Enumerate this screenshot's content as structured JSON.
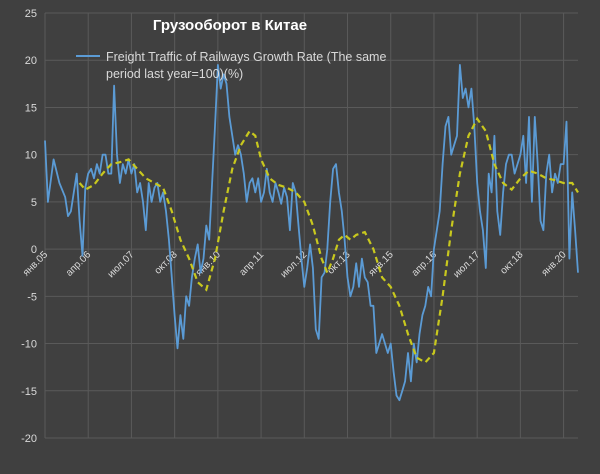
{
  "chart_data": {
    "type": "line",
    "title": "Грузооборот в Китае",
    "xlabel": "",
    "ylabel": "",
    "ylim": [
      -20,
      25
    ],
    "y_ticks": [
      -20,
      -15,
      -10,
      -5,
      0,
      5,
      10,
      15,
      20,
      25
    ],
    "x_ticks": [
      {
        "label": "янв.05",
        "x": "2005-01"
      },
      {
        "label": "апр.06",
        "x": "2006-04"
      },
      {
        "label": "июл.07",
        "x": "2007-07"
      },
      {
        "label": "окт.08",
        "x": "2008-10"
      },
      {
        "label": "янв.10",
        "x": "2010-01"
      },
      {
        "label": "апр.11",
        "x": "2011-04"
      },
      {
        "label": "июл.12",
        "x": "2012-07"
      },
      {
        "label": "окт.13",
        "x": "2013-10"
      },
      {
        "label": "янв.15",
        "x": "2015-01"
      },
      {
        "label": "апр.16",
        "x": "2016-04"
      },
      {
        "label": "июл.17",
        "x": "2017-07"
      },
      {
        "label": "окт.18",
        "x": "2018-10"
      },
      {
        "label": "янв.20",
        "x": "2020-01"
      }
    ],
    "x_range": [
      "2005-01",
      "2020-06"
    ],
    "grid": true,
    "legend": "top-center",
    "colors": {
      "background": "#404040",
      "grid": "#5a5a5a",
      "axis_text": "#d9d9d9",
      "series": "#5b9bd5",
      "trend": "#c8c81e",
      "title": "#ffffff"
    },
    "series": [
      {
        "name": "Freight Traffic of Railways Growth Rate (The same period last year=100)(%)",
        "style": "solid",
        "points": [
          [
            "2005-01",
            11.5
          ],
          [
            "2005-02",
            5
          ],
          [
            "2005-04",
            9.5
          ],
          [
            "2005-06",
            7
          ],
          [
            "2005-08",
            5.5
          ],
          [
            "2005-09",
            3.5
          ],
          [
            "2005-10",
            4
          ],
          [
            "2005-11",
            6
          ],
          [
            "2005-12",
            8
          ],
          [
            "2006-01",
            3
          ],
          [
            "2006-02",
            -0.7
          ],
          [
            "2006-03",
            6.5
          ],
          [
            "2006-04",
            8
          ],
          [
            "2006-05",
            8.5
          ],
          [
            "2006-06",
            7.5
          ],
          [
            "2006-07",
            9
          ],
          [
            "2006-08",
            8
          ],
          [
            "2006-09",
            10
          ],
          [
            "2006-10",
            10
          ],
          [
            "2006-11",
            8
          ],
          [
            "2006-12",
            8
          ],
          [
            "2007-01",
            17.3
          ],
          [
            "2007-02",
            10
          ],
          [
            "2007-03",
            7
          ],
          [
            "2007-04",
            9
          ],
          [
            "2007-05",
            8
          ],
          [
            "2007-06",
            9.5
          ],
          [
            "2007-07",
            8
          ],
          [
            "2007-08",
            9
          ],
          [
            "2007-09",
            6
          ],
          [
            "2007-10",
            7
          ],
          [
            "2007-11",
            5
          ],
          [
            "2007-12",
            2
          ],
          [
            "2008-01",
            7
          ],
          [
            "2008-02",
            5
          ],
          [
            "2008-03",
            6.5
          ],
          [
            "2008-04",
            7
          ],
          [
            "2008-05",
            5
          ],
          [
            "2008-06",
            6
          ],
          [
            "2008-07",
            4
          ],
          [
            "2008-08",
            1
          ],
          [
            "2008-09",
            -3
          ],
          [
            "2008-10",
            -7
          ],
          [
            "2008-11",
            -10.5
          ],
          [
            "2008-12",
            -7
          ],
          [
            "2009-01",
            -9.5
          ],
          [
            "2009-02",
            -5
          ],
          [
            "2009-03",
            -6
          ],
          [
            "2009-04",
            -3
          ],
          [
            "2009-05",
            -1
          ],
          [
            "2009-06",
            0.5
          ],
          [
            "2009-07",
            -2.5
          ],
          [
            "2009-08",
            -1
          ],
          [
            "2009-09",
            2.5
          ],
          [
            "2009-10",
            1
          ],
          [
            "2009-11",
            7
          ],
          [
            "2009-12",
            13
          ],
          [
            "2010-01",
            19.5
          ],
          [
            "2010-02",
            17
          ],
          [
            "2010-03",
            18.5
          ],
          [
            "2010-04",
            17.5
          ],
          [
            "2010-05",
            14
          ],
          [
            "2010-06",
            12
          ],
          [
            "2010-07",
            10
          ],
          [
            "2010-08",
            11
          ],
          [
            "2010-09",
            10
          ],
          [
            "2010-10",
            8
          ],
          [
            "2010-11",
            5
          ],
          [
            "2010-12",
            7
          ],
          [
            "2011-01",
            7.5
          ],
          [
            "2011-02",
            6
          ],
          [
            "2011-03",
            7.5
          ],
          [
            "2011-04",
            5
          ],
          [
            "2011-05",
            6
          ],
          [
            "2011-06",
            8.5
          ],
          [
            "2011-07",
            6
          ],
          [
            "2011-08",
            5
          ],
          [
            "2011-09",
            7
          ],
          [
            "2011-10",
            6
          ],
          [
            "2011-11",
            4.8
          ],
          [
            "2011-12",
            6.5
          ],
          [
            "2012-01",
            5.5
          ],
          [
            "2012-02",
            2
          ],
          [
            "2012-03",
            7
          ],
          [
            "2012-04",
            6
          ],
          [
            "2012-05",
            2.5
          ],
          [
            "2012-06",
            -1
          ],
          [
            "2012-07",
            -4
          ],
          [
            "2012-08",
            -2
          ],
          [
            "2012-09",
            0.5
          ],
          [
            "2012-10",
            -2
          ],
          [
            "2012-11",
            -8.5
          ],
          [
            "2012-12",
            -9.5
          ],
          [
            "2013-01",
            -3
          ],
          [
            "2013-02",
            -2.5
          ],
          [
            "2013-03",
            0
          ],
          [
            "2013-04",
            5
          ],
          [
            "2013-05",
            8.5
          ],
          [
            "2013-06",
            9
          ],
          [
            "2013-07",
            6
          ],
          [
            "2013-08",
            4
          ],
          [
            "2013-09",
            1
          ],
          [
            "2013-10",
            -3
          ],
          [
            "2013-11",
            -5
          ],
          [
            "2013-12",
            -4
          ],
          [
            "2014-01",
            -1.5
          ],
          [
            "2014-02",
            -4
          ],
          [
            "2014-03",
            -1
          ],
          [
            "2014-04",
            -3
          ],
          [
            "2014-05",
            -3.5
          ],
          [
            "2014-06",
            -6
          ],
          [
            "2014-07",
            -6
          ],
          [
            "2014-08",
            -11
          ],
          [
            "2014-09",
            -10
          ],
          [
            "2014-10",
            -9
          ],
          [
            "2014-11",
            -10
          ],
          [
            "2014-12",
            -11
          ],
          [
            "2015-01",
            -10
          ],
          [
            "2015-02",
            -13
          ],
          [
            "2015-03",
            -15.5
          ],
          [
            "2015-04",
            -16
          ],
          [
            "2015-05",
            -15
          ],
          [
            "2015-06",
            -14
          ],
          [
            "2015-07",
            -11
          ],
          [
            "2015-08",
            -14
          ],
          [
            "2015-09",
            -10
          ],
          [
            "2015-10",
            -12
          ],
          [
            "2015-11",
            -9
          ],
          [
            "2015-12",
            -7
          ],
          [
            "2016-01",
            -6
          ],
          [
            "2016-02",
            -4
          ],
          [
            "2016-03",
            -5
          ],
          [
            "2016-04",
            0
          ],
          [
            "2016-05",
            2
          ],
          [
            "2016-06",
            4
          ],
          [
            "2016-07",
            9
          ],
          [
            "2016-08",
            13
          ],
          [
            "2016-09",
            14
          ],
          [
            "2016-10",
            10
          ],
          [
            "2016-11",
            11
          ],
          [
            "2016-12",
            12
          ],
          [
            "2017-01",
            19.5
          ],
          [
            "2017-02",
            16
          ],
          [
            "2017-03",
            17
          ],
          [
            "2017-04",
            15
          ],
          [
            "2017-05",
            17
          ],
          [
            "2017-06",
            13
          ],
          [
            "2017-07",
            7
          ],
          [
            "2017-08",
            4
          ],
          [
            "2017-09",
            2
          ],
          [
            "2017-10",
            -2
          ],
          [
            "2017-11",
            8
          ],
          [
            "2017-12",
            6
          ],
          [
            "2018-01",
            12
          ],
          [
            "2018-02",
            4
          ],
          [
            "2018-03",
            1.5
          ],
          [
            "2018-04",
            6
          ],
          [
            "2018-05",
            9
          ],
          [
            "2018-06",
            10
          ],
          [
            "2018-07",
            10
          ],
          [
            "2018-08",
            8
          ],
          [
            "2018-09",
            9
          ],
          [
            "2018-10",
            10
          ],
          [
            "2018-11",
            12
          ],
          [
            "2018-12",
            7
          ],
          [
            "2019-01",
            14
          ],
          [
            "2019-02",
            5
          ],
          [
            "2019-03",
            14
          ],
          [
            "2019-04",
            9
          ],
          [
            "2019-05",
            3
          ],
          [
            "2019-06",
            2
          ],
          [
            "2019-07",
            8
          ],
          [
            "2019-08",
            10
          ],
          [
            "2019-09",
            6
          ],
          [
            "2019-10",
            8
          ],
          [
            "2019-11",
            7
          ],
          [
            "2019-12",
            9
          ],
          [
            "2020-01",
            9
          ],
          [
            "2020-02",
            13.5
          ],
          [
            "2020-03",
            -1
          ],
          [
            "2020-04",
            6
          ],
          [
            "2020-05",
            2
          ],
          [
            "2020-06",
            -2.5
          ]
        ]
      },
      {
        "name": "",
        "style": "dashed",
        "points": [
          [
            "2006-01",
            7
          ],
          [
            "2006-03",
            6.3
          ],
          [
            "2006-06",
            6.8
          ],
          [
            "2006-09",
            8
          ],
          [
            "2006-12",
            9
          ],
          [
            "2007-03",
            9.2
          ],
          [
            "2007-06",
            9.5
          ],
          [
            "2007-09",
            8.5
          ],
          [
            "2007-12",
            7.5
          ],
          [
            "2008-03",
            7
          ],
          [
            "2008-06",
            6.5
          ],
          [
            "2008-09",
            4
          ],
          [
            "2008-12",
            1
          ],
          [
            "2009-03",
            -1
          ],
          [
            "2009-06",
            -3.5
          ],
          [
            "2009-09",
            -4.3
          ],
          [
            "2009-12",
            -1
          ],
          [
            "2010-03",
            4
          ],
          [
            "2010-06",
            8.5
          ],
          [
            "2010-09",
            11
          ],
          [
            "2010-12",
            12.5
          ],
          [
            "2011-02",
            12
          ],
          [
            "2011-04",
            9.5
          ],
          [
            "2011-07",
            7.5
          ],
          [
            "2011-10",
            6.8
          ],
          [
            "2012-01",
            6.5
          ],
          [
            "2012-04",
            6
          ],
          [
            "2012-07",
            5
          ],
          [
            "2012-10",
            2.5
          ],
          [
            "2013-01",
            -1
          ],
          [
            "2013-03",
            -2.5
          ],
          [
            "2013-05",
            -1
          ],
          [
            "2013-07",
            1
          ],
          [
            "2013-09",
            1.5
          ],
          [
            "2013-11",
            1
          ],
          [
            "2014-01",
            1.5
          ],
          [
            "2014-04",
            1.8
          ],
          [
            "2014-07",
            0
          ],
          [
            "2014-10",
            -3
          ],
          [
            "2015-01",
            -4
          ],
          [
            "2015-04",
            -6
          ],
          [
            "2015-07",
            -9
          ],
          [
            "2015-10",
            -11.5
          ],
          [
            "2016-01",
            -12
          ],
          [
            "2016-04",
            -11
          ],
          [
            "2016-07",
            -5
          ],
          [
            "2016-10",
            2
          ],
          [
            "2017-01",
            8
          ],
          [
            "2017-04",
            12
          ],
          [
            "2017-07",
            13.8
          ],
          [
            "2017-10",
            12.5
          ],
          [
            "2018-01",
            9
          ],
          [
            "2018-04",
            7
          ],
          [
            "2018-07",
            6.3
          ],
          [
            "2018-10",
            7.5
          ],
          [
            "2019-01",
            8.3
          ],
          [
            "2019-04",
            8
          ],
          [
            "2019-07",
            7.5
          ],
          [
            "2019-10",
            7.3
          ],
          [
            "2020-01",
            7
          ],
          [
            "2020-04",
            7
          ],
          [
            "2020-06",
            6
          ]
        ]
      }
    ]
  }
}
